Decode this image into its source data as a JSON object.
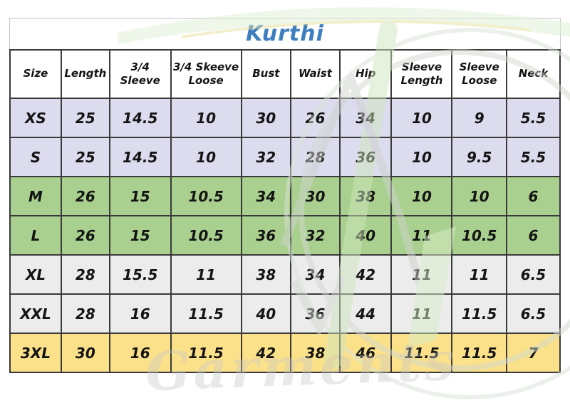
{
  "title": "Kurthi",
  "title_color": "#3d7ebf",
  "table": {
    "columns": [
      "Size",
      "Length",
      "3/4 Sleeve",
      "3/4 Skeeve Loose",
      "Bust",
      "Waist",
      "Hip",
      "Sleeve Length",
      "Sleeve Loose",
      "Neck"
    ],
    "rows": [
      {
        "size": "XS",
        "values": [
          "25",
          "14.5",
          "10",
          "30",
          "26",
          "34",
          "10",
          "9",
          "5.5"
        ],
        "bg": "#dcdcee"
      },
      {
        "size": "S",
        "values": [
          "25",
          "14.5",
          "10",
          "32",
          "28",
          "36",
          "10",
          "9.5",
          "5.5"
        ],
        "bg": "#dcdcee"
      },
      {
        "size": "M",
        "values": [
          "26",
          "15",
          "10.5",
          "34",
          "30",
          "38",
          "10",
          "10",
          "6"
        ],
        "bg": "#a9d08e"
      },
      {
        "size": "L",
        "values": [
          "26",
          "15",
          "10.5",
          "36",
          "32",
          "40",
          "11",
          "10.5",
          "6"
        ],
        "bg": "#a9d08e"
      },
      {
        "size": "XL",
        "values": [
          "28",
          "15.5",
          "11",
          "38",
          "34",
          "42",
          "11",
          "11",
          "6.5"
        ],
        "bg": "#ececec"
      },
      {
        "size": "XXL",
        "values": [
          "28",
          "16",
          "11.5",
          "40",
          "36",
          "44",
          "11",
          "11.5",
          "6.5"
        ],
        "bg": "#ececec"
      },
      {
        "size": "3XL",
        "values": [
          "30",
          "16",
          "11.5",
          "42",
          "38",
          "46",
          "11.5",
          "11.5",
          "7"
        ],
        "bg": "#fbe189"
      }
    ]
  },
  "watermark": {
    "text": "Garments",
    "green": "#cfe6bd",
    "gray": "#cfd2cd"
  },
  "colors": {
    "border_dark": "#3a3a3a",
    "row_lavender": "#dcdcee",
    "row_green": "#a9d08e",
    "row_gray": "#ececec",
    "row_yellow": "#fbe189"
  }
}
